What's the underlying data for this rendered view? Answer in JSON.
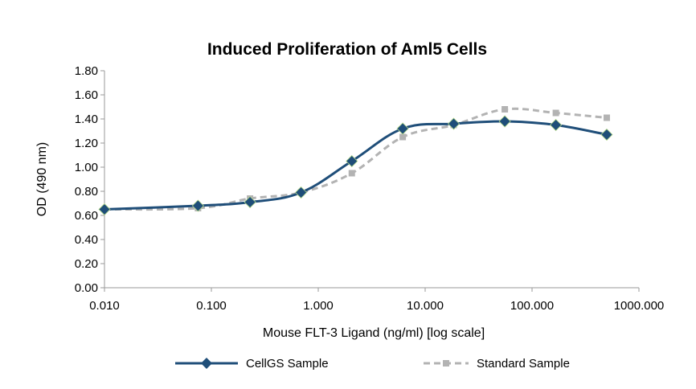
{
  "chart_data": {
    "type": "line",
    "title": "Induced Proliferation of Aml5 Cells",
    "xlabel": "Mouse FLT-3 Ligand (ng/ml) [log scale]",
    "ylabel": "OD (490 nm)",
    "x_scale": "log",
    "xlim": [
      0.01,
      1000
    ],
    "ylim": [
      0,
      1.8
    ],
    "x_ticks": [
      "0.010",
      "0.100",
      "1.000",
      "10.000",
      "100.000",
      "1000.000"
    ],
    "y_ticks": [
      "0.00",
      "0.20",
      "0.40",
      "0.60",
      "0.80",
      "1.00",
      "1.20",
      "1.40",
      "1.60",
      "1.80"
    ],
    "grid": false,
    "legend_position": "bottom",
    "x": [
      0.01,
      0.075,
      0.23,
      0.69,
      2.06,
      6.17,
      18.5,
      55.6,
      167,
      500
    ],
    "series": [
      {
        "name": "CellGS Sample",
        "color": "#1f4e79",
        "marker": "diamond",
        "line_style": "solid",
        "values": [
          0.65,
          0.68,
          0.71,
          0.79,
          1.05,
          1.32,
          1.36,
          1.38,
          1.35,
          1.27
        ]
      },
      {
        "name": "Standard Sample",
        "color": "#b3b3b3",
        "marker": "square",
        "line_style": "dashed",
        "values": [
          0.65,
          0.66,
          0.74,
          0.79,
          0.95,
          1.25,
          1.35,
          1.48,
          1.45,
          1.41
        ]
      }
    ]
  }
}
